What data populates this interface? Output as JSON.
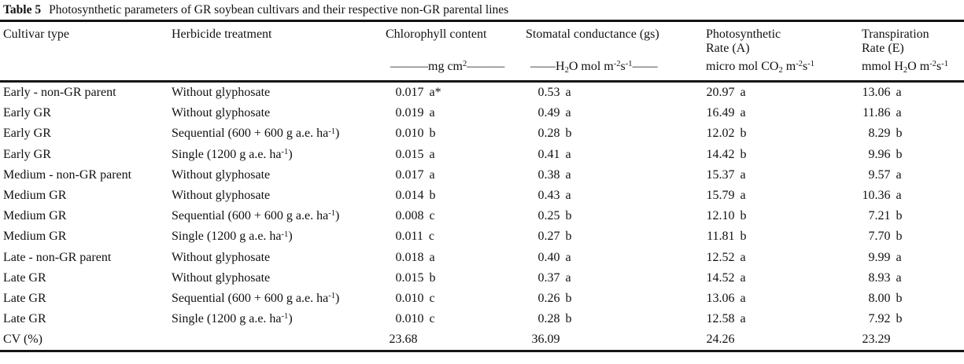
{
  "caption": {
    "label": "Table 5",
    "text": "Photosynthetic parameters of GR soybean cultivars and their respective non-GR parental lines"
  },
  "table": {
    "columns": [
      {
        "key": "cultivar-type",
        "lines": [
          "Cultivar type"
        ],
        "unit": []
      },
      {
        "key": "herbicide-treatment",
        "lines": [
          "Herbicide treatment"
        ],
        "unit": []
      },
      {
        "key": "chlorophyll-content",
        "lines": [
          "Chlorophyll content"
        ],
        "unit": [
          {
            "t": "———mg cm"
          },
          {
            "t": "2",
            "sup": true
          },
          {
            "t": "———"
          }
        ]
      },
      {
        "key": "stomatal-conductance",
        "lines": [
          "Stomatal conductance (gs)"
        ],
        "unit": [
          {
            "t": "——H"
          },
          {
            "t": "2",
            "sub": true
          },
          {
            "t": "O mol m"
          },
          {
            "t": "-2",
            "sup": true
          },
          {
            "t": "s"
          },
          {
            "t": "-1",
            "sup": true
          },
          {
            "t": "——"
          }
        ]
      },
      {
        "key": "photosynthetic-rate",
        "lines": [
          "Photosynthetic",
          "Rate (A)"
        ],
        "unit": [
          {
            "t": "micro mol CO"
          },
          {
            "t": "2",
            "sub": true
          },
          {
            "t": " m"
          },
          {
            "t": "-2",
            "sup": true
          },
          {
            "t": "s"
          },
          {
            "t": "-1",
            "sup": true
          }
        ]
      },
      {
        "key": "transpiration-rate",
        "lines": [
          "Transpiration",
          "Rate (E)"
        ],
        "unit": [
          {
            "t": "mmol H"
          },
          {
            "t": "2",
            "sub": true
          },
          {
            "t": "O m"
          },
          {
            "t": "-2",
            "sup": true
          },
          {
            "t": "s"
          },
          {
            "t": "-1",
            "sup": true
          }
        ]
      }
    ],
    "value_keys": [
      "chlorophyll-content",
      "stomatal-conductance",
      "photosynthetic-rate",
      "transpiration-rate"
    ],
    "rows": [
      {
        "cultivar": "Early - non-GR parent",
        "treatment": [
          {
            "t": "Without glyphosate"
          }
        ],
        "values": [
          {
            "num": "0.017",
            "sig": "a*"
          },
          {
            "num": "0.53",
            "sig": "a"
          },
          {
            "num": "20.97",
            "sig": "a"
          },
          {
            "num": "13.06",
            "sig": "a"
          }
        ]
      },
      {
        "cultivar": "Early GR",
        "treatment": [
          {
            "t": "Without glyphosate"
          }
        ],
        "values": [
          {
            "num": "0.019",
            "sig": "a"
          },
          {
            "num": "0.49",
            "sig": "a"
          },
          {
            "num": "16.49",
            "sig": "a"
          },
          {
            "num": "11.86",
            "sig": "a"
          }
        ]
      },
      {
        "cultivar": "Early GR",
        "treatment": [
          {
            "t": "Sequential (600 + 600 g a.e. ha"
          },
          {
            "t": "-1",
            "sup": true
          },
          {
            "t": ")"
          }
        ],
        "values": [
          {
            "num": "0.010",
            "sig": "b"
          },
          {
            "num": "0.28",
            "sig": "b"
          },
          {
            "num": "12.02",
            "sig": "b"
          },
          {
            "num": "8.29",
            "sig": "b"
          }
        ]
      },
      {
        "cultivar": "Early GR",
        "treatment": [
          {
            "t": "Single (1200 g a.e. ha"
          },
          {
            "t": "-1",
            "sup": true
          },
          {
            "t": ")"
          }
        ],
        "values": [
          {
            "num": "0.015",
            "sig": "a"
          },
          {
            "num": "0.41",
            "sig": "a"
          },
          {
            "num": "14.42",
            "sig": "b"
          },
          {
            "num": "9.96",
            "sig": "b"
          }
        ]
      },
      {
        "cultivar": "Medium - non-GR parent",
        "treatment": [
          {
            "t": "Without glyphosate"
          }
        ],
        "values": [
          {
            "num": "0.017",
            "sig": "a"
          },
          {
            "num": "0.38",
            "sig": "a"
          },
          {
            "num": "15.37",
            "sig": "a"
          },
          {
            "num": "9.57",
            "sig": "a"
          }
        ]
      },
      {
        "cultivar": "Medium GR",
        "treatment": [
          {
            "t": "Without glyphosate"
          }
        ],
        "values": [
          {
            "num": "0.014",
            "sig": "b"
          },
          {
            "num": "0.43",
            "sig": "a"
          },
          {
            "num": "15.79",
            "sig": "a"
          },
          {
            "num": "10.36",
            "sig": "a"
          }
        ]
      },
      {
        "cultivar": "Medium GR",
        "treatment": [
          {
            "t": "Sequential (600 + 600 g a.e. ha"
          },
          {
            "t": "-1",
            "sup": true
          },
          {
            "t": ")"
          }
        ],
        "values": [
          {
            "num": "0.008",
            "sig": "c"
          },
          {
            "num": "0.25",
            "sig": "b"
          },
          {
            "num": "12.10",
            "sig": "b"
          },
          {
            "num": "7.21",
            "sig": "b"
          }
        ]
      },
      {
        "cultivar": "Medium GR",
        "treatment": [
          {
            "t": "Single (1200 g a.e. ha"
          },
          {
            "t": "-1",
            "sup": true
          },
          {
            "t": ")"
          }
        ],
        "values": [
          {
            "num": "0.011",
            "sig": "c"
          },
          {
            "num": "0.27",
            "sig": "b"
          },
          {
            "num": "11.81",
            "sig": "b"
          },
          {
            "num": "7.70",
            "sig": "b"
          }
        ]
      },
      {
        "cultivar": "Late - non-GR parent",
        "treatment": [
          {
            "t": "Without glyphosate"
          }
        ],
        "values": [
          {
            "num": "0.018",
            "sig": "a"
          },
          {
            "num": "0.40",
            "sig": "a"
          },
          {
            "num": "12.52",
            "sig": "a"
          },
          {
            "num": "9.99",
            "sig": "a"
          }
        ]
      },
      {
        "cultivar": "Late GR",
        "treatment": [
          {
            "t": "Without glyphosate"
          }
        ],
        "values": [
          {
            "num": "0.015",
            "sig": "b"
          },
          {
            "num": "0.37",
            "sig": "a"
          },
          {
            "num": "14.52",
            "sig": "a"
          },
          {
            "num": "8.93",
            "sig": "a"
          }
        ]
      },
      {
        "cultivar": "Late GR",
        "treatment": [
          {
            "t": "Sequential (600 + 600 g a.e. ha"
          },
          {
            "t": "-1",
            "sup": true
          },
          {
            "t": ")"
          }
        ],
        "values": [
          {
            "num": "0.010",
            "sig": "c"
          },
          {
            "num": "0.26",
            "sig": "b"
          },
          {
            "num": "13.06",
            "sig": "a"
          },
          {
            "num": "8.00",
            "sig": "b"
          }
        ]
      },
      {
        "cultivar": "Late GR",
        "treatment": [
          {
            "t": "Single (1200 g a.e. ha"
          },
          {
            "t": "-1",
            "sup": true
          },
          {
            "t": ")"
          }
        ],
        "values": [
          {
            "num": "0.010",
            "sig": "c"
          },
          {
            "num": "0.28",
            "sig": "b"
          },
          {
            "num": "12.58",
            "sig": "a"
          },
          {
            "num": "7.92",
            "sig": "b"
          }
        ]
      },
      {
        "cultivar": "CV (%)",
        "treatment": [],
        "values": [
          {
            "num": "23.68",
            "sig": ""
          },
          {
            "num": "36.09",
            "sig": ""
          },
          {
            "num": "24.26",
            "sig": ""
          },
          {
            "num": "23.29",
            "sig": ""
          }
        ]
      }
    ]
  }
}
